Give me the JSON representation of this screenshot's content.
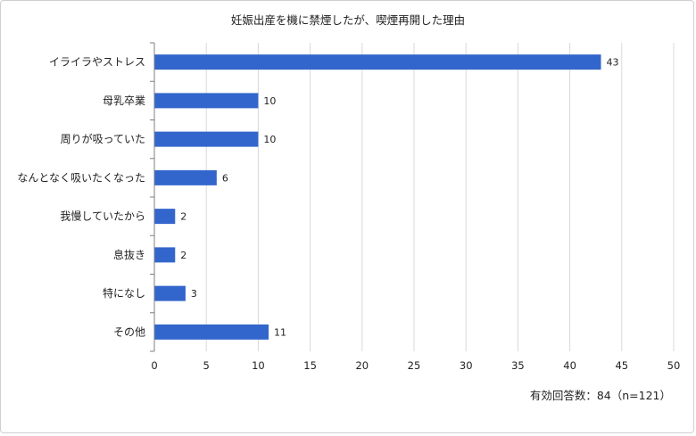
{
  "chart_data": {
    "type": "bar",
    "orientation": "horizontal",
    "title": "妊娠出産を機に禁煙したが、喫煙再開した理由",
    "categories": [
      "イライラやストレス",
      "母乳卒業",
      "周りが吸っていた",
      "なんとなく吸いたくなった",
      "我慢していたから",
      "息抜き",
      "特になし",
      "その他"
    ],
    "values": [
      43,
      10,
      10,
      6,
      2,
      2,
      3,
      11
    ],
    "xlim": [
      0,
      50
    ],
    "xticks": [
      0,
      5,
      10,
      15,
      20,
      25,
      30,
      35,
      40,
      45,
      50
    ],
    "grid": true,
    "bar_color": "#3366cc",
    "note": "有効回答数：84（n=121）"
  }
}
